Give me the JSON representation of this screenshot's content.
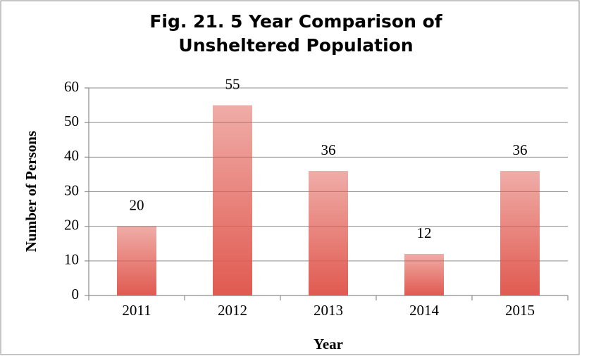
{
  "chart_data": {
    "type": "bar",
    "title": "Fig. 21. 5 Year Comparison of Unsheltered Population",
    "xlabel": "Year",
    "ylabel": "Number of Persons",
    "categories": [
      "2011",
      "2012",
      "2013",
      "2014",
      "2015"
    ],
    "values": [
      20,
      55,
      36,
      12,
      36
    ],
    "color": "#e05a50",
    "ylim": [
      0,
      60
    ],
    "yticks": [
      0,
      10,
      20,
      30,
      40,
      50,
      60
    ],
    "grid": true
  }
}
